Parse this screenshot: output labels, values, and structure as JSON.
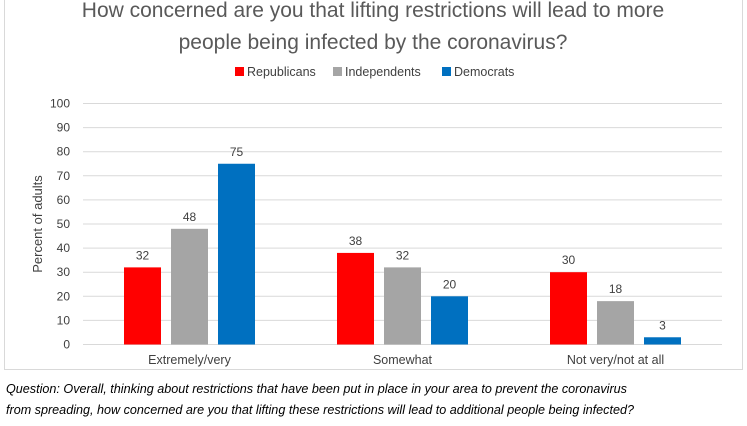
{
  "colors": {
    "Republicans": "#ff0000",
    "Independents": "#a5a5a5",
    "Democrats": "#0070c0",
    "gridline": "#d9d9d9",
    "axis_text": "#404040"
  },
  "chart_data": {
    "type": "bar",
    "title": "How concerned are you that lifting restrictions will lead to more people being infected by the coronavirus?",
    "title_lines": [
      "How concerned are you that lifting restrictions will lead to more",
      "people being infected by the coronavirus?"
    ],
    "xlabel": "",
    "ylabel": "Percent of adults",
    "categories": [
      "Extremely/very",
      "Somewhat",
      "Not very/not at all"
    ],
    "series": [
      {
        "name": "Republicans",
        "values": [
          32,
          38,
          30
        ]
      },
      {
        "name": "Independents",
        "values": [
          48,
          32,
          18
        ]
      },
      {
        "name": "Democrats",
        "values": [
          75,
          20,
          3
        ]
      }
    ],
    "ylim": [
      0,
      100
    ],
    "yticks": [
      "0",
      "10",
      "20",
      "30",
      "40",
      "50",
      "60",
      "70",
      "80",
      "90",
      "100"
    ],
    "grid": true,
    "legend_position": "top"
  },
  "caption": {
    "line1": "Question: Overall, thinking about restrictions that have been put in place in your area to prevent the coronavirus",
    "line2": "from spreading, how concerned are you that lifting these restrictions will lead to additional people being infected?"
  }
}
